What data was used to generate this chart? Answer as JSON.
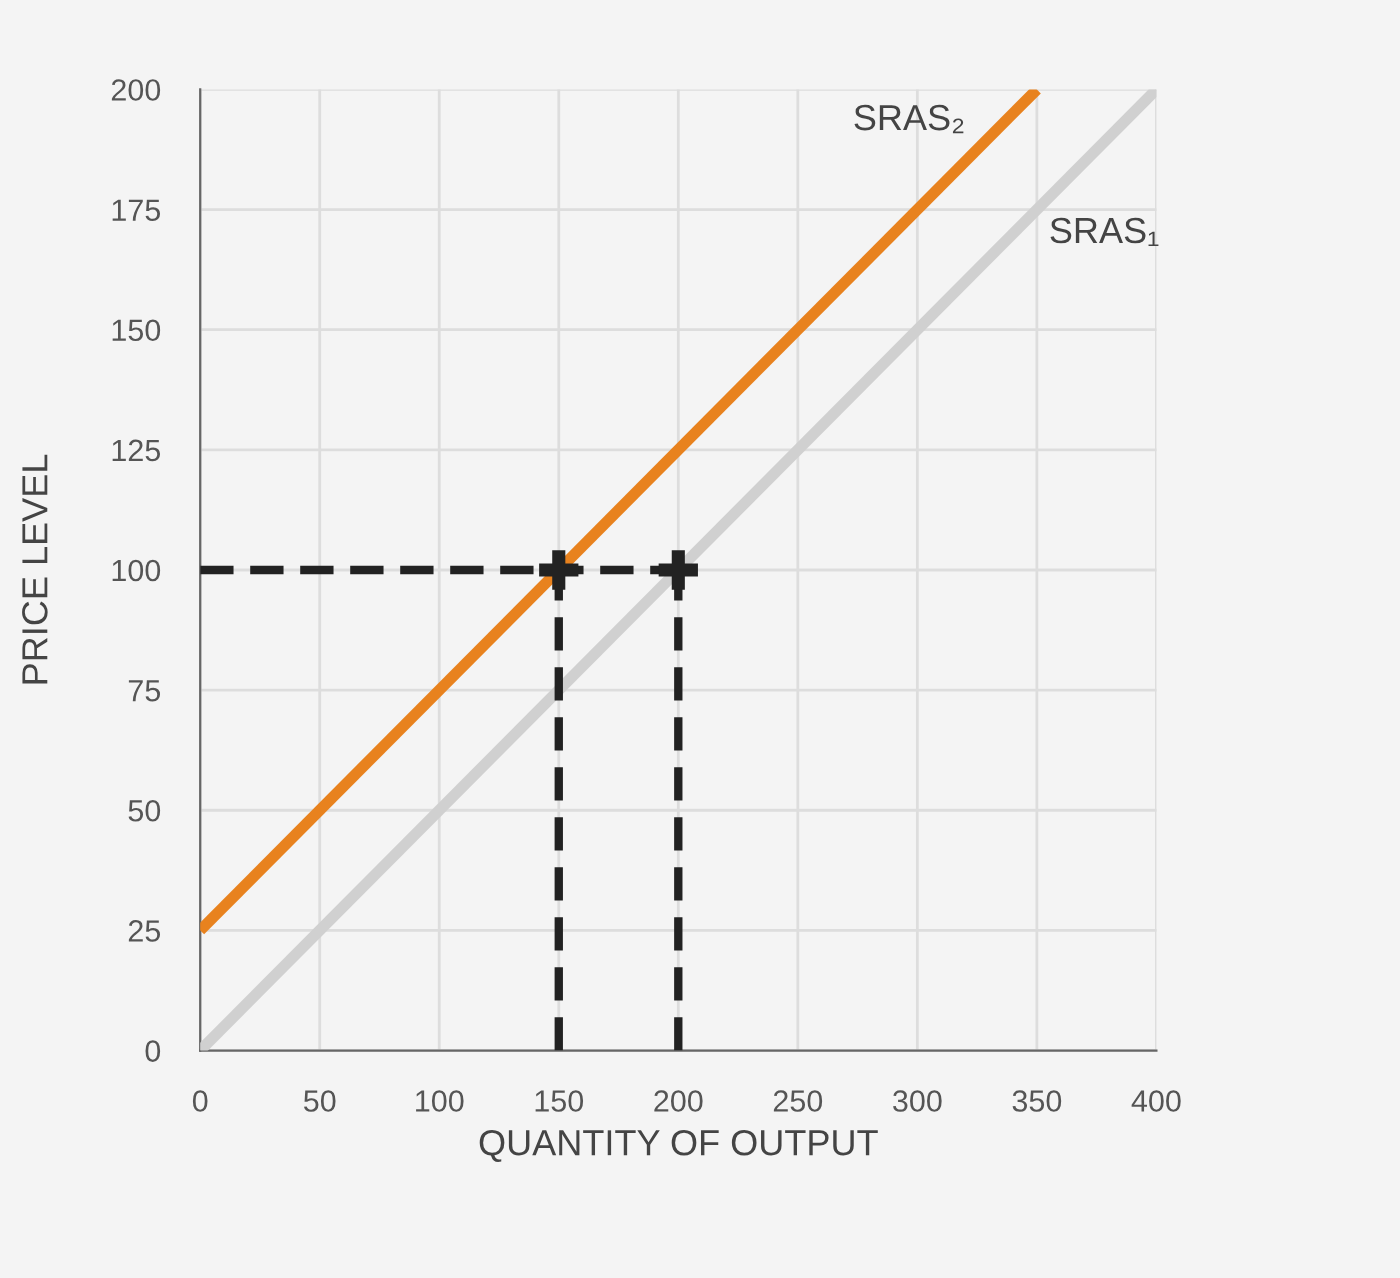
{
  "chart_data": {
    "type": "line",
    "xlabel": "QUANTITY OF OUTPUT",
    "ylabel": "PRICE LEVEL",
    "xlim": [
      0,
      400
    ],
    "ylim": [
      0,
      200
    ],
    "xticks": [
      0,
      50,
      100,
      150,
      200,
      250,
      300,
      350,
      400
    ],
    "yticks": [
      0,
      25,
      50,
      75,
      100,
      125,
      150,
      175,
      200
    ],
    "grid": true,
    "legend": false,
    "series": [
      {
        "name": "SRAS₁",
        "color": "#d0d0d0",
        "x": [
          0,
          400
        ],
        "values": [
          0,
          200
        ]
      },
      {
        "name": "SRAS₂",
        "color": "#e8821e",
        "x": [
          0,
          350
        ],
        "values": [
          25,
          200
        ]
      },
      {
        "color": "#222222",
        "line_style": "dashed",
        "x": [
          0,
          200
        ],
        "values": [
          100,
          100
        ]
      },
      {
        "color": "#222222",
        "line_style": "dashed",
        "x": [
          150,
          150
        ],
        "values": [
          0,
          100
        ]
      },
      {
        "color": "#222222",
        "line_style": "dashed",
        "x": [
          200,
          200
        ],
        "values": [
          0,
          100
        ]
      },
      {
        "type": "scatter",
        "marker": "cross",
        "color": "#222222",
        "x": [
          150,
          200
        ],
        "values": [
          100,
          100
        ]
      }
    ]
  }
}
